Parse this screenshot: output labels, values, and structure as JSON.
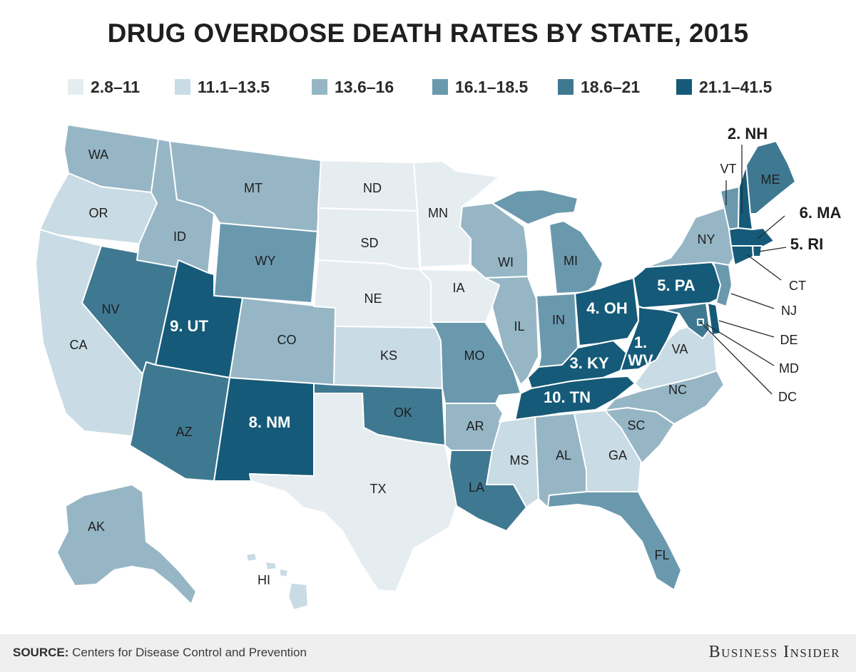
{
  "title": "DRUG OVERDOSE DEATH RATES BY STATE, 2015",
  "legend": [
    {
      "label": "2.8–11",
      "color": "#e6edf1"
    },
    {
      "label": "11.1–13.5",
      "color": "#c9dbe4"
    },
    {
      "label": "13.6–16",
      "color": "#96b6c5"
    },
    {
      "label": "16.1–18.5",
      "color": "#6a99ae"
    },
    {
      "label": "18.6–21",
      "color": "#3f7891"
    },
    {
      "label": "21.1–41.5",
      "color": "#155a78"
    }
  ],
  "states": [
    {
      "abbr": "WA",
      "label": "WA",
      "bin": 2
    },
    {
      "abbr": "OR",
      "label": "OR",
      "bin": 1
    },
    {
      "abbr": "CA",
      "label": "CA",
      "bin": 1
    },
    {
      "abbr": "NV",
      "label": "NV",
      "bin": 4
    },
    {
      "abbr": "ID",
      "label": "ID",
      "bin": 2
    },
    {
      "abbr": "MT",
      "label": "MT",
      "bin": 2
    },
    {
      "abbr": "WY",
      "label": "WY",
      "bin": 3
    },
    {
      "abbr": "UT",
      "label": "9. UT",
      "bin": 5
    },
    {
      "abbr": "AZ",
      "label": "AZ",
      "bin": 4
    },
    {
      "abbr": "CO",
      "label": "CO",
      "bin": 2
    },
    {
      "abbr": "NM",
      "label": "8. NM",
      "bin": 5
    },
    {
      "abbr": "ND",
      "label": "ND",
      "bin": 0
    },
    {
      "abbr": "SD",
      "label": "SD",
      "bin": 0
    },
    {
      "abbr": "NE",
      "label": "NE",
      "bin": 0
    },
    {
      "abbr": "KS",
      "label": "KS",
      "bin": 1
    },
    {
      "abbr": "OK",
      "label": "OK",
      "bin": 4
    },
    {
      "abbr": "TX",
      "label": "TX",
      "bin": 0
    },
    {
      "abbr": "MN",
      "label": "MN",
      "bin": 0
    },
    {
      "abbr": "IA",
      "label": "IA",
      "bin": 0
    },
    {
      "abbr": "MO",
      "label": "MO",
      "bin": 3
    },
    {
      "abbr": "AR",
      "label": "AR",
      "bin": 2
    },
    {
      "abbr": "LA",
      "label": "LA",
      "bin": 4
    },
    {
      "abbr": "WI",
      "label": "WI",
      "bin": 2
    },
    {
      "abbr": "IL",
      "label": "IL",
      "bin": 2
    },
    {
      "abbr": "MI",
      "label": "MI",
      "bin": 3
    },
    {
      "abbr": "IN",
      "label": "IN",
      "bin": 3
    },
    {
      "abbr": "OH",
      "label": "4. OH",
      "bin": 5
    },
    {
      "abbr": "KY",
      "label": "3. KY",
      "bin": 5
    },
    {
      "abbr": "TN",
      "label": "10. TN",
      "bin": 5
    },
    {
      "abbr": "MS",
      "label": "MS",
      "bin": 1
    },
    {
      "abbr": "AL",
      "label": "AL",
      "bin": 2
    },
    {
      "abbr": "GA",
      "label": "GA",
      "bin": 1
    },
    {
      "abbr": "FL",
      "label": "FL",
      "bin": 3
    },
    {
      "abbr": "SC",
      "label": "SC",
      "bin": 2
    },
    {
      "abbr": "NC",
      "label": "NC",
      "bin": 2
    },
    {
      "abbr": "VA",
      "label": "VA",
      "bin": 1
    },
    {
      "abbr": "WV",
      "label": "1. WV",
      "bin": 5
    },
    {
      "abbr": "PA",
      "label": "5. PA",
      "bin": 5
    },
    {
      "abbr": "NY",
      "label": "NY",
      "bin": 2
    },
    {
      "abbr": "VT",
      "label": "VT",
      "bin": 3
    },
    {
      "abbr": "NH",
      "label": "2. NH",
      "bin": 5
    },
    {
      "abbr": "ME",
      "label": "ME",
      "bin": 4
    },
    {
      "abbr": "MA",
      "label": "6. MA",
      "bin": 5
    },
    {
      "abbr": "RI",
      "label": "5. RI",
      "bin": 5
    },
    {
      "abbr": "CT",
      "label": "CT",
      "bin": 5
    },
    {
      "abbr": "NJ",
      "label": "NJ",
      "bin": 3
    },
    {
      "abbr": "DE",
      "label": "DE",
      "bin": 5
    },
    {
      "abbr": "MD",
      "label": "MD",
      "bin": 4
    },
    {
      "abbr": "DC",
      "label": "DC",
      "bin": 4
    },
    {
      "abbr": "AK",
      "label": "AK",
      "bin": 2
    },
    {
      "abbr": "HI",
      "label": "HI",
      "bin": 1
    }
  ],
  "footer": {
    "source_label": "SOURCE:",
    "source_text": " Centers for Disease Control and Prevention",
    "brand": "Business Insider"
  }
}
